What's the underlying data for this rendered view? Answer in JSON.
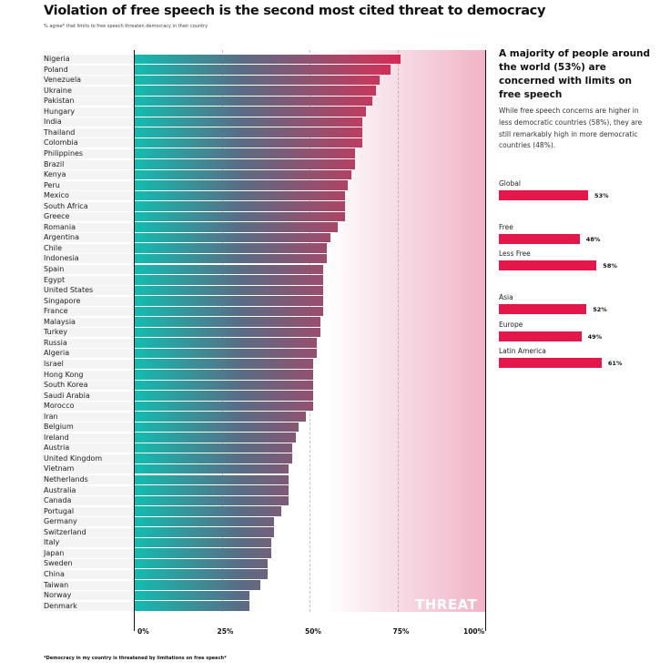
{
  "title": "Violation of free speech is the second most cited threat to democracy",
  "subtitle": "% agree* that limits to free speech threaten democracy in their country",
  "watermark": "THREAT",
  "footnote": "*Democracy in my country is threatened by limitations on free speech*",
  "chart_data": {
    "type": "bar",
    "orientation": "horizontal",
    "title": "Violation of free speech is the second most cited threat to democracy",
    "xlabel": "% agree",
    "xlim": [
      0,
      100
    ],
    "ticks": [
      "0%",
      "25%",
      "50%",
      "75%",
      "100%"
    ],
    "categories": [
      "Nigeria",
      "Poland",
      "Venezuela",
      "Ukraine",
      "Pakistan",
      "Hungary",
      "India",
      "Thailand",
      "Colombia",
      "Philippines",
      "Brazil",
      "Kenya",
      "Peru",
      "Mexico",
      "South Africa",
      "Greece",
      "Romania",
      "Argentina",
      "Chile",
      "Indonesia",
      "Spain",
      "Egypt",
      "United States",
      "Singapore",
      "France",
      "Malaysia",
      "Turkey",
      "Russia",
      "Algeria",
      "Israel",
      "Hong Kong",
      "South Korea",
      "Saudi Arabia",
      "Morocco",
      "Iran",
      "Belgium",
      "Ireland",
      "Austria",
      "United Kingdom",
      "Vietnam",
      "Netherlands",
      "Australia",
      "Canada",
      "Portugal",
      "Germany",
      "Switzerland",
      "Italy",
      "Japan",
      "Sweden",
      "China",
      "Taiwan",
      "Norway",
      "Denmark"
    ],
    "values": [
      76,
      73,
      70,
      69,
      68,
      66,
      65,
      65,
      65,
      63,
      63,
      62,
      61,
      60,
      60,
      60,
      58,
      56,
      55,
      55,
      54,
      54,
      54,
      54,
      54,
      53,
      53,
      52,
      52,
      51,
      51,
      51,
      51,
      51,
      49,
      47,
      46,
      45,
      45,
      44,
      44,
      44,
      44,
      42,
      40,
      40,
      39,
      39,
      38,
      38,
      36,
      33,
      33
    ]
  },
  "panel": {
    "heading": "A majority of people around the world (53%) are concerned with limits on free speech",
    "text": "While free speech concerns are higher in less democratic countries (58%), they are still remarkably high in more democratic countries (48%).",
    "bars": [
      {
        "label": "Global",
        "value": 53,
        "value_label": "53%"
      },
      {
        "label": "Free",
        "value": 48,
        "value_label": "48%"
      },
      {
        "label": "Less Free",
        "value": 58,
        "value_label": "58%"
      },
      {
        "label": "Asia",
        "value": 52,
        "value_label": "52%"
      },
      {
        "label": "Europe",
        "value": 49,
        "value_label": "49%"
      },
      {
        "label": "Latin America",
        "value": 61,
        "value_label": "61%"
      }
    ],
    "color": "#e3174a"
  }
}
